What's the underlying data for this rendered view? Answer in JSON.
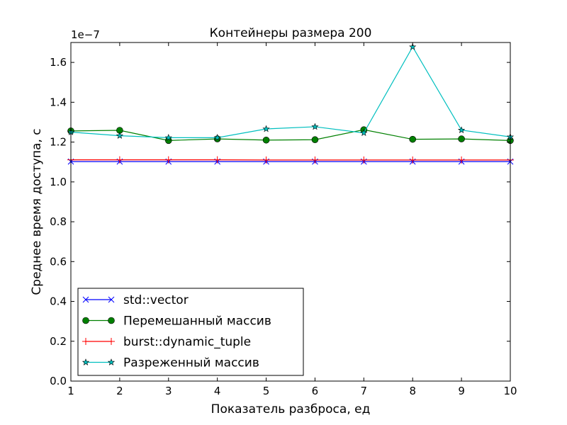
{
  "chart_data": {
    "type": "line",
    "title": "Контейнеры размера 200",
    "xlabel": "Показатель разброса, ед",
    "ylabel": "Среднее время доступа, с",
    "y_offset_label": "1e−7",
    "x": [
      1,
      2,
      3,
      4,
      5,
      6,
      7,
      8,
      9,
      10
    ],
    "xlim": [
      1,
      10
    ],
    "ylim": [
      0.0,
      1.7
    ],
    "x_ticks": [
      "1",
      "2",
      "3",
      "4",
      "5",
      "6",
      "7",
      "8",
      "9",
      "10"
    ],
    "y_ticks": [
      "0.0",
      "0.2",
      "0.4",
      "0.6",
      "0.8",
      "1.0",
      "1.2",
      "1.4",
      "1.6"
    ],
    "grid": false,
    "legend_position": "lower left",
    "series": [
      {
        "name": "std::vector",
        "color": "#0000ff",
        "marker": "x",
        "values": [
          1.102,
          1.102,
          1.102,
          1.102,
          1.102,
          1.102,
          1.102,
          1.102,
          1.102,
          1.102
        ]
      },
      {
        "name": "Перемешанный массив",
        "color": "#008000",
        "marker": "o",
        "values": [
          1.256,
          1.259,
          1.208,
          1.216,
          1.21,
          1.212,
          1.262,
          1.214,
          1.216,
          1.208
        ]
      },
      {
        "name": "burst::dynamic_tuple",
        "color": "#ff0000",
        "marker": "+",
        "values": [
          1.111,
          1.111,
          1.111,
          1.111,
          1.11,
          1.11,
          1.11,
          1.11,
          1.11,
          1.11
        ]
      },
      {
        "name": "Разреженный массив",
        "color": "#00bfbf",
        "marker": "*",
        "values": [
          1.25,
          1.232,
          1.222,
          1.222,
          1.266,
          1.277,
          1.246,
          1.678,
          1.26,
          1.226
        ]
      }
    ]
  }
}
